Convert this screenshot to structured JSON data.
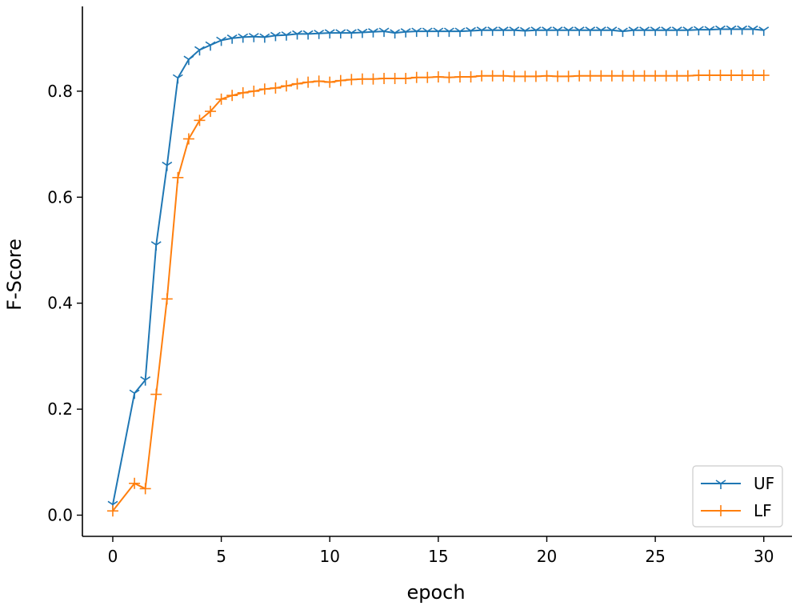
{
  "chart_data": {
    "type": "line",
    "xlabel": "epoch",
    "ylabel": "F-Score",
    "xlim": [
      -1.4,
      31.3
    ],
    "ylim": [
      -0.04,
      0.96
    ],
    "xticks": [
      0,
      5,
      10,
      15,
      20,
      25,
      30
    ],
    "yticks": [
      0.0,
      0.2,
      0.4,
      0.6,
      0.8
    ],
    "ytick_labels": [
      "0.0",
      "0.2",
      "0.4",
      "0.6",
      "0.8"
    ],
    "grid": false,
    "legend_position": "lower-right",
    "series": [
      {
        "name": "UF",
        "color": "#1f77b4",
        "marker": "tri-down",
        "x": [
          0,
          1,
          1.5,
          2,
          2.5,
          3,
          3.5,
          4,
          4.5,
          5,
          5.5,
          6,
          6.5,
          7,
          7.5,
          8,
          8.5,
          9,
          9.5,
          10,
          10.5,
          11,
          11.5,
          12,
          12.5,
          13,
          13.5,
          14,
          14.5,
          15,
          15.5,
          16,
          16.5,
          17,
          17.5,
          18,
          18.5,
          19,
          19.5,
          20,
          20.5,
          21,
          21.5,
          22,
          22.5,
          23,
          23.5,
          24,
          24.5,
          25,
          25.5,
          26,
          26.5,
          27,
          27.5,
          28,
          28.5,
          29,
          29.5,
          30
        ],
        "values": [
          0.02,
          0.23,
          0.255,
          0.51,
          0.66,
          0.825,
          0.86,
          0.878,
          0.887,
          0.896,
          0.9,
          0.902,
          0.903,
          0.902,
          0.905,
          0.906,
          0.908,
          0.908,
          0.909,
          0.91,
          0.91,
          0.91,
          0.911,
          0.912,
          0.913,
          0.91,
          0.912,
          0.913,
          0.913,
          0.913,
          0.913,
          0.913,
          0.914,
          0.915,
          0.915,
          0.915,
          0.915,
          0.914,
          0.915,
          0.915,
          0.915,
          0.915,
          0.915,
          0.915,
          0.915,
          0.915,
          0.913,
          0.915,
          0.915,
          0.915,
          0.915,
          0.915,
          0.915,
          0.916,
          0.916,
          0.917,
          0.917,
          0.917,
          0.917,
          0.915
        ]
      },
      {
        "name": "LF",
        "color": "#ff7f0e",
        "marker": "plus",
        "x": [
          0,
          1,
          1.5,
          2,
          2.5,
          3,
          3.5,
          4,
          4.5,
          5,
          5.5,
          6,
          6.5,
          7,
          7.5,
          8,
          8.5,
          9,
          9.5,
          10,
          10.5,
          11,
          11.5,
          12,
          12.5,
          13,
          13.5,
          14,
          14.5,
          15,
          15.5,
          16,
          16.5,
          17,
          17.5,
          18,
          18.5,
          19,
          19.5,
          20,
          20.5,
          21,
          21.5,
          22,
          22.5,
          23,
          23.5,
          24,
          24.5,
          25,
          25.5,
          26,
          26.5,
          27,
          27.5,
          28,
          28.5,
          29,
          29.5,
          30
        ],
        "values": [
          0.008,
          0.06,
          0.05,
          0.228,
          0.408,
          0.637,
          0.71,
          0.745,
          0.762,
          0.785,
          0.792,
          0.797,
          0.8,
          0.804,
          0.806,
          0.81,
          0.814,
          0.817,
          0.819,
          0.817,
          0.82,
          0.822,
          0.823,
          0.823,
          0.824,
          0.824,
          0.824,
          0.826,
          0.826,
          0.827,
          0.826,
          0.827,
          0.827,
          0.829,
          0.829,
          0.829,
          0.828,
          0.828,
          0.828,
          0.829,
          0.828,
          0.828,
          0.829,
          0.829,
          0.829,
          0.829,
          0.829,
          0.829,
          0.829,
          0.829,
          0.829,
          0.829,
          0.829,
          0.83,
          0.83,
          0.83,
          0.83,
          0.83,
          0.83,
          0.83
        ]
      }
    ]
  }
}
